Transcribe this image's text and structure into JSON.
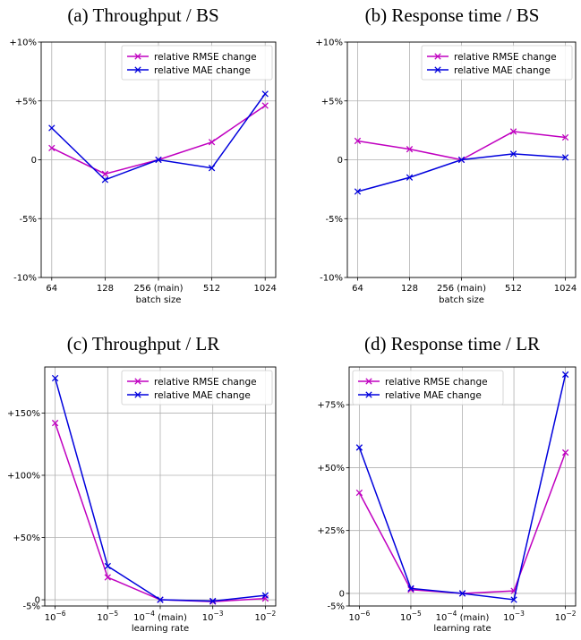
{
  "colors": {
    "rmse": "#c000c0",
    "mae": "#0000dd"
  },
  "chart_data": [
    {
      "type": "line",
      "title": "(a) Throughput / BS",
      "xlabel": "batch size",
      "ylabel": "",
      "categories": [
        "64",
        "128",
        "256 (main)",
        "512",
        "1024"
      ],
      "ylim": [
        -10,
        10
      ],
      "yticks": [
        -10,
        -5,
        0,
        5,
        10
      ],
      "ytick_labels": [
        "-10%",
        "-5%",
        "0",
        "+5%",
        "+10%"
      ],
      "grid": true,
      "legend": "top-right",
      "series": [
        {
          "name": "relative RMSE change",
          "values": [
            1.0,
            -1.2,
            0.0,
            1.5,
            4.6
          ]
        },
        {
          "name": "relative MAE change",
          "values": [
            2.7,
            -1.7,
            0.0,
            -0.7,
            5.6
          ]
        }
      ]
    },
    {
      "type": "line",
      "title": "(b) Response time / BS",
      "xlabel": "batch size",
      "ylabel": "",
      "categories": [
        "64",
        "128",
        "256 (main)",
        "512",
        "1024"
      ],
      "ylim": [
        -10,
        10
      ],
      "yticks": [
        -10,
        -5,
        0,
        5,
        10
      ],
      "ytick_labels": [
        "-10%",
        "-5%",
        "0",
        "+5%",
        "+10%"
      ],
      "grid": true,
      "legend": "top-right",
      "series": [
        {
          "name": "relative RMSE change",
          "values": [
            1.6,
            0.9,
            0.0,
            2.4,
            1.9
          ]
        },
        {
          "name": "relative MAE change",
          "values": [
            -2.7,
            -1.5,
            0.0,
            0.5,
            0.2
          ]
        }
      ]
    },
    {
      "type": "line",
      "title": "(c) Throughput / LR",
      "xlabel": "learning rate",
      "ylabel": "",
      "categories": [
        {
          "base": "10",
          "exp": "−6",
          "suffix": ""
        },
        {
          "base": "10",
          "exp": "−5",
          "suffix": ""
        },
        {
          "base": "10",
          "exp": "−4",
          "suffix": " (main)"
        },
        {
          "base": "10",
          "exp": "−3",
          "suffix": ""
        },
        {
          "base": "10",
          "exp": "−2",
          "suffix": ""
        }
      ],
      "ylim": [
        -5,
        187
      ],
      "yticks": [
        -5,
        0,
        50,
        100,
        150
      ],
      "ytick_labels": [
        "-5%",
        "0",
        "+50%",
        "+100%",
        "+150%"
      ],
      "grid": true,
      "legend": "top-right",
      "series": [
        {
          "name": "relative RMSE change",
          "values": [
            142,
            18,
            0.0,
            -1.5,
            1.0
          ]
        },
        {
          "name": "relative MAE change",
          "values": [
            178,
            27,
            0.0,
            -1.0,
            3.5
          ]
        }
      ]
    },
    {
      "type": "line",
      "title": "(d) Response time / LR",
      "xlabel": "learning rate",
      "ylabel": "",
      "categories": [
        {
          "base": "10",
          "exp": "−6",
          "suffix": ""
        },
        {
          "base": "10",
          "exp": "−5",
          "suffix": ""
        },
        {
          "base": "10",
          "exp": "−4",
          "suffix": " (main)"
        },
        {
          "base": "10",
          "exp": "−3",
          "suffix": ""
        },
        {
          "base": "10",
          "exp": "−2",
          "suffix": ""
        }
      ],
      "ylim": [
        -5,
        90
      ],
      "yticks": [
        -5,
        0,
        25,
        50,
        75
      ],
      "ytick_labels": [
        "-5%",
        "0",
        "+25%",
        "+50%",
        "+75%"
      ],
      "grid": true,
      "legend": "top-left",
      "series": [
        {
          "name": "relative RMSE change",
          "values": [
            40,
            1.5,
            0.0,
            1.0,
            56
          ]
        },
        {
          "name": "relative MAE change",
          "values": [
            58,
            2.0,
            0.0,
            -2.5,
            87
          ]
        }
      ]
    }
  ]
}
